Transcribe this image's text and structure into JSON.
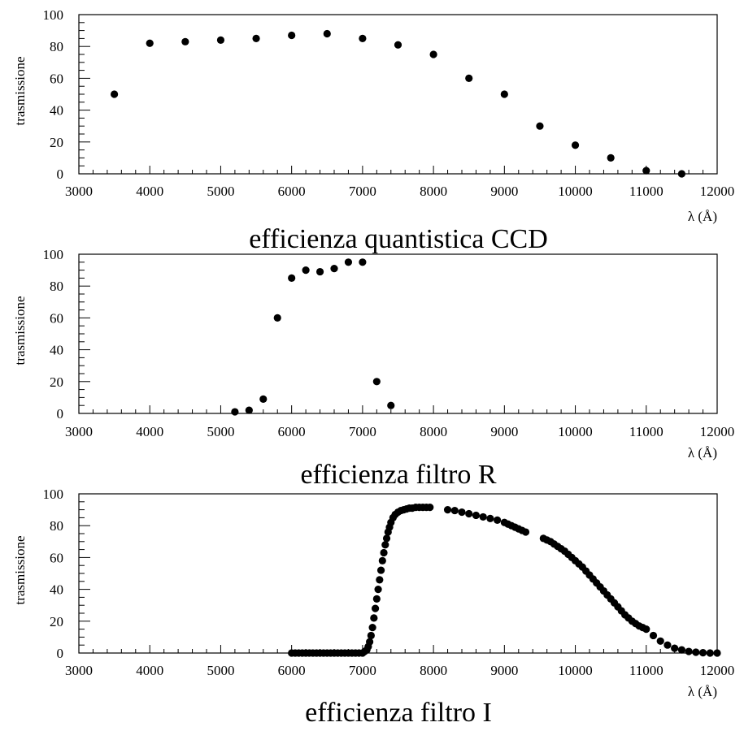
{
  "chart_data": [
    {
      "type": "scatter",
      "title": "efficienza quantistica CCD",
      "xlabel": "λ (Å)",
      "ylabel": "trasmissione",
      "xlim": [
        3000,
        12000
      ],
      "ylim": [
        0,
        100
      ],
      "x_ticks": [
        "3000",
        "4000",
        "5000",
        "6000",
        "7000",
        "8000",
        "9000",
        "10000",
        "11000",
        "12000"
      ],
      "y_ticks": [
        "0",
        "20",
        "40",
        "60",
        "80",
        "100"
      ],
      "grid": false,
      "points": [
        [
          3500,
          50
        ],
        [
          4000,
          82
        ],
        [
          4500,
          83
        ],
        [
          5000,
          84
        ],
        [
          5500,
          85
        ],
        [
          6000,
          87
        ],
        [
          6500,
          88
        ],
        [
          7000,
          85
        ],
        [
          7500,
          81
        ],
        [
          8000,
          75
        ],
        [
          8500,
          60
        ],
        [
          9000,
          50
        ],
        [
          9500,
          30
        ],
        [
          10000,
          18
        ],
        [
          10500,
          10
        ],
        [
          11000,
          2
        ],
        [
          11500,
          0
        ]
      ]
    },
    {
      "type": "scatter",
      "title": "efficienza filtro R",
      "xlabel": "λ (Å)",
      "ylabel": "trasmissione",
      "xlim": [
        3000,
        12000
      ],
      "ylim": [
        0,
        100
      ],
      "x_ticks": [
        "3000",
        "4000",
        "5000",
        "6000",
        "7000",
        "8000",
        "9000",
        "10000",
        "11000",
        "12000"
      ],
      "y_ticks": [
        "0",
        "20",
        "40",
        "60",
        "80",
        "100"
      ],
      "grid": false,
      "points": [
        [
          5200,
          1
        ],
        [
          5400,
          2
        ],
        [
          5600,
          9
        ],
        [
          5800,
          60
        ],
        [
          6000,
          85
        ],
        [
          6200,
          90
        ],
        [
          6400,
          89
        ],
        [
          6600,
          91
        ],
        [
          6800,
          95
        ],
        [
          7000,
          95
        ],
        [
          7200,
          20
        ],
        [
          7400,
          5
        ]
      ]
    },
    {
      "type": "scatter",
      "title": "efficienza filtro I",
      "xlabel": "λ (Å)",
      "ylabel": "trasmissione",
      "xlim": [
        3000,
        12000
      ],
      "ylim": [
        0,
        100
      ],
      "x_ticks": [
        "3000",
        "4000",
        "5000",
        "6000",
        "7000",
        "8000",
        "9000",
        "10000",
        "11000",
        "12000"
      ],
      "y_ticks": [
        "0",
        "20",
        "40",
        "60",
        "80",
        "100"
      ],
      "grid": false,
      "points": [
        [
          6000,
          0
        ],
        [
          6050,
          0
        ],
        [
          6100,
          0
        ],
        [
          6150,
          0
        ],
        [
          6200,
          0
        ],
        [
          6250,
          0
        ],
        [
          6300,
          0
        ],
        [
          6350,
          0
        ],
        [
          6400,
          0
        ],
        [
          6450,
          0
        ],
        [
          6500,
          0
        ],
        [
          6550,
          0
        ],
        [
          6600,
          0
        ],
        [
          6650,
          0
        ],
        [
          6700,
          0
        ],
        [
          6750,
          0
        ],
        [
          6800,
          0
        ],
        [
          6850,
          0
        ],
        [
          6900,
          0
        ],
        [
          6950,
          0
        ],
        [
          7000,
          0
        ],
        [
          7030,
          1
        ],
        [
          7060,
          2
        ],
        [
          7080,
          4
        ],
        [
          7100,
          7
        ],
        [
          7120,
          11
        ],
        [
          7140,
          16
        ],
        [
          7160,
          22
        ],
        [
          7180,
          28
        ],
        [
          7200,
          34
        ],
        [
          7220,
          40
        ],
        [
          7240,
          46
        ],
        [
          7260,
          52
        ],
        [
          7280,
          58
        ],
        [
          7300,
          63
        ],
        [
          7320,
          68
        ],
        [
          7340,
          72
        ],
        [
          7360,
          76
        ],
        [
          7380,
          79
        ],
        [
          7400,
          82
        ],
        [
          7430,
          85
        ],
        [
          7460,
          87
        ],
        [
          7500,
          88.5
        ],
        [
          7540,
          89.5
        ],
        [
          7580,
          90
        ],
        [
          7620,
          90.5
        ],
        [
          7660,
          91
        ],
        [
          7700,
          91
        ],
        [
          7750,
          91.5
        ],
        [
          7800,
          91.5
        ],
        [
          7850,
          91.5
        ],
        [
          7900,
          91.5
        ],
        [
          7950,
          91.5
        ],
        [
          8200,
          90
        ],
        [
          8300,
          89.5
        ],
        [
          8400,
          88.5
        ],
        [
          8500,
          87.5
        ],
        [
          8600,
          86.5
        ],
        [
          8700,
          85.5
        ],
        [
          8800,
          84.5
        ],
        [
          8900,
          83.5
        ],
        [
          9000,
          82
        ],
        [
          9050,
          81
        ],
        [
          9100,
          80
        ],
        [
          9150,
          79
        ],
        [
          9200,
          78
        ],
        [
          9250,
          77
        ],
        [
          9300,
          76
        ],
        [
          9550,
          72
        ],
        [
          9600,
          71
        ],
        [
          9650,
          70
        ],
        [
          9700,
          68.5
        ],
        [
          9750,
          67
        ],
        [
          9800,
          65.5
        ],
        [
          9850,
          64
        ],
        [
          9900,
          62
        ],
        [
          9950,
          60
        ],
        [
          10000,
          58
        ],
        [
          10050,
          56
        ],
        [
          10100,
          54
        ],
        [
          10150,
          51.5
        ],
        [
          10200,
          49
        ],
        [
          10250,
          46.5
        ],
        [
          10300,
          44
        ],
        [
          10350,
          41.5
        ],
        [
          10400,
          39
        ],
        [
          10450,
          36.5
        ],
        [
          10500,
          34
        ],
        [
          10550,
          31.5
        ],
        [
          10600,
          29
        ],
        [
          10650,
          26.5
        ],
        [
          10700,
          24
        ],
        [
          10750,
          22
        ],
        [
          10800,
          20
        ],
        [
          10850,
          18.5
        ],
        [
          10900,
          17
        ],
        [
          10950,
          16
        ],
        [
          11000,
          15
        ],
        [
          11100,
          11
        ],
        [
          11200,
          7.5
        ],
        [
          11300,
          5
        ],
        [
          11400,
          3
        ],
        [
          11500,
          2
        ],
        [
          11600,
          1
        ],
        [
          11700,
          0.5
        ],
        [
          11800,
          0.2
        ],
        [
          11900,
          0
        ],
        [
          12000,
          0
        ]
      ]
    }
  ]
}
